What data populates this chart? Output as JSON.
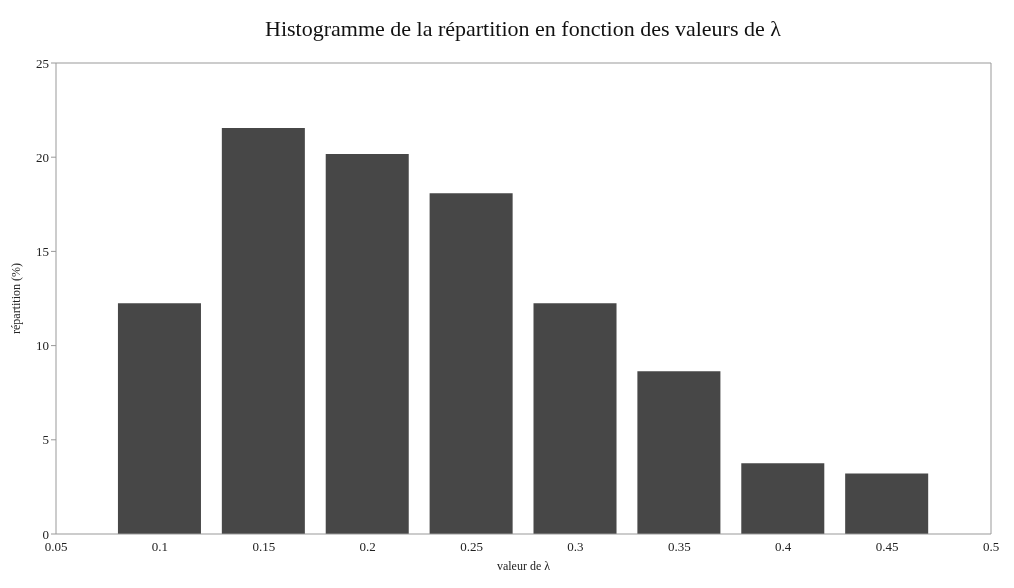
{
  "chart_data": {
    "type": "bar",
    "title": "Histogramme de la répartition en fonction des valeurs de λ",
    "xlabel": "valeur de λ",
    "ylabel": "répartition (%)",
    "x": [
      0.1,
      0.15,
      0.2,
      0.25,
      0.3,
      0.35,
      0.4,
      0.45
    ],
    "values": [
      12.25,
      21.55,
      20.17,
      18.08,
      12.25,
      8.64,
      3.76,
      3.21
    ],
    "color": "#474747",
    "xlim": [
      0.05,
      0.5
    ],
    "xticks": [
      0.05,
      0.1,
      0.15,
      0.2,
      0.25,
      0.3,
      0.35,
      0.4,
      0.45,
      0.5
    ],
    "ylim": [
      0,
      25
    ],
    "yticks": [
      0,
      5,
      10,
      15,
      20,
      25
    ],
    "grid": false
  }
}
